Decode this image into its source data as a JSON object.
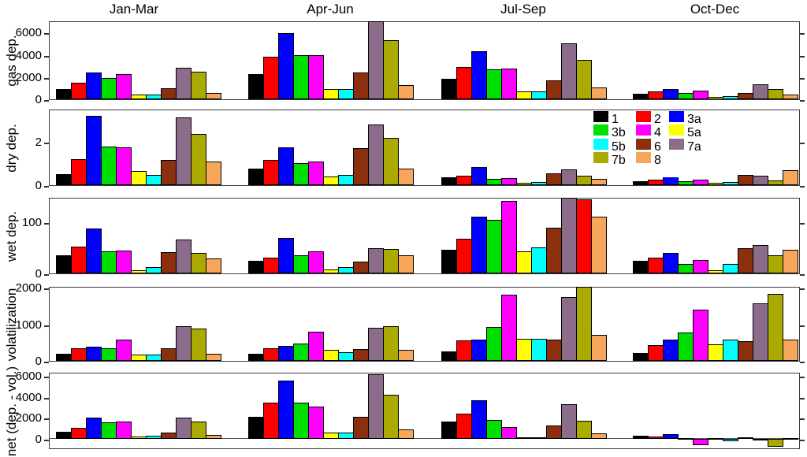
{
  "titles": [
    "Jan-Mar",
    "Apr-Jun",
    "Jul-Sep",
    "Oct-Dec"
  ],
  "chart_data": {
    "type": "bar",
    "groups": [
      "Jan-Mar",
      "Apr-Jun",
      "Jul-Sep",
      "Oct-Dec"
    ],
    "series": [
      {
        "name": "1",
        "color": "#000000"
      },
      {
        "name": "2",
        "color": "#ff0000"
      },
      {
        "name": "3a",
        "color": "#0000ff"
      },
      {
        "name": "3b",
        "color": "#00e000"
      },
      {
        "name": "4",
        "color": "#ff00ff"
      },
      {
        "name": "5a",
        "color": "#ffff00"
      },
      {
        "name": "5b",
        "color": "#00ffff"
      },
      {
        "name": "6",
        "color": "#8b2f0e"
      },
      {
        "name": "7a",
        "color": "#8b6d8b"
      },
      {
        "name": "7b",
        "color": "#aaaa00"
      },
      {
        "name": "8",
        "color": "#f7a65c"
      }
    ],
    "rows": [
      {
        "label": "gas dep.",
        "ylim": [
          0,
          7100
        ],
        "yticks": [
          0,
          2000,
          4000,
          6000
        ],
        "values": [
          [
            950,
            1500,
            2450,
            1900,
            2250,
            450,
            450,
            1000,
            2850,
            2500,
            600
          ],
          [
            2250,
            3850,
            6000,
            3950,
            4000,
            950,
            950,
            2400,
            7000,
            5300,
            1300
          ],
          [
            1850,
            2900,
            4300,
            2700,
            2800,
            720,
            680,
            1680,
            5050,
            3580,
            1080
          ],
          [
            480,
            680,
            950,
            600,
            750,
            220,
            270,
            560,
            1380,
            950,
            440
          ]
        ]
      },
      {
        "label": "dry dep.",
        "ylim": [
          0,
          3.5
        ],
        "yticks": [
          0,
          2
        ],
        "values": [
          [
            0.5,
            1.18,
            3.18,
            1.77,
            1.73,
            0.66,
            0.48,
            1.15,
            3.09,
            2.36,
            1.07
          ],
          [
            0.76,
            1.17,
            1.74,
            1.02,
            1.08,
            0.4,
            0.46,
            1.68,
            2.78,
            2.18,
            0.76
          ],
          [
            0.36,
            0.44,
            0.82,
            0.3,
            0.31,
            0.12,
            0.14,
            0.53,
            0.73,
            0.42,
            0.28
          ],
          [
            0.18,
            0.26,
            0.44,
            0.18,
            0.26,
            0.12,
            0.14,
            0.46,
            0.42,
            0.2,
            0.68
          ]
        ]
      },
      {
        "label": "wet dep.",
        "ylim": [
          0,
          150
        ],
        "yticks": [
          0,
          100
        ],
        "values": [
          [
            35,
            52,
            88,
            44,
            45,
            6,
            13,
            42,
            66,
            40,
            30
          ],
          [
            24,
            31,
            69,
            36,
            43,
            7,
            12,
            23,
            49,
            48,
            36
          ],
          [
            46,
            68,
            111,
            105,
            143,
            44,
            51,
            90,
            149,
            146,
            111
          ],
          [
            24,
            31,
            40,
            19,
            26,
            6,
            18,
            50,
            55,
            36,
            47
          ]
        ]
      },
      {
        "label": "volatilization",
        "ylim": [
          0,
          2050
        ],
        "yticks": [
          0,
          1000,
          2000
        ],
        "values": [
          [
            190,
            352,
            380,
            352,
            585,
            169,
            169,
            352,
            944,
            887,
            204
          ],
          [
            190,
            352,
            401,
            472,
            803,
            296,
            246,
            317,
            915,
            944,
            296
          ],
          [
            254,
            556,
            577,
            930,
            1817,
            599,
            613,
            577,
            1753,
            2035,
            704
          ],
          [
            225,
            423,
            592,
            768,
            1408,
            458,
            577,
            542,
            1577,
            1845,
            577
          ]
        ]
      },
      {
        "label": "net (dep. - vol.)",
        "ylim": [
          -900,
          6400
        ],
        "yticks": [
          0,
          2000,
          4000,
          6000
        ],
        "values": [
          [
            691,
            1086,
            2074,
            1580,
            1630,
            247,
            296,
            617,
            2025,
            1630,
            346
          ],
          [
            2123,
            3457,
            5605,
            3481,
            3111,
            593,
            642,
            2123,
            6150,
            4247,
            900
          ],
          [
            1647,
            2376,
            3717,
            1835,
            1129,
            141,
            94,
            1247,
            3317,
            1717,
            494
          ],
          [
            306,
            235,
            424,
            -100,
            -612,
            -90,
            -212,
            50,
            -150,
            -729,
            -80
          ]
        ]
      }
    ],
    "color_overrides": [
      {
        "row": 2,
        "group": 2,
        "series": 9,
        "color": "#ff0000"
      }
    ],
    "legend": {
      "items": [
        {
          "label": "1",
          "color": "#000000",
          "col": 0,
          "row": 0
        },
        {
          "label": "2",
          "color": "#ff0000",
          "col": 1,
          "row": 0
        },
        {
          "label": "3a",
          "color": "#0000ff",
          "col": 2,
          "row": 0
        },
        {
          "label": "3b",
          "color": "#00e000",
          "col": 0,
          "row": 1
        },
        {
          "label": "4",
          "color": "#ff00ff",
          "col": 1,
          "row": 1
        },
        {
          "label": "5a",
          "color": "#ffff00",
          "col": 2,
          "row": 1
        },
        {
          "label": "5b",
          "color": "#00ffff",
          "col": 0,
          "row": 2
        },
        {
          "label": "6",
          "color": "#8b2f0e",
          "col": 1,
          "row": 2
        },
        {
          "label": "7a",
          "color": "#8b6d8b",
          "col": 2,
          "row": 2
        },
        {
          "label": "7b",
          "color": "#aaaa00",
          "col": 0,
          "row": 3
        },
        {
          "label": "8",
          "color": "#f7a65c",
          "col": 1,
          "row": 3
        }
      ]
    }
  }
}
